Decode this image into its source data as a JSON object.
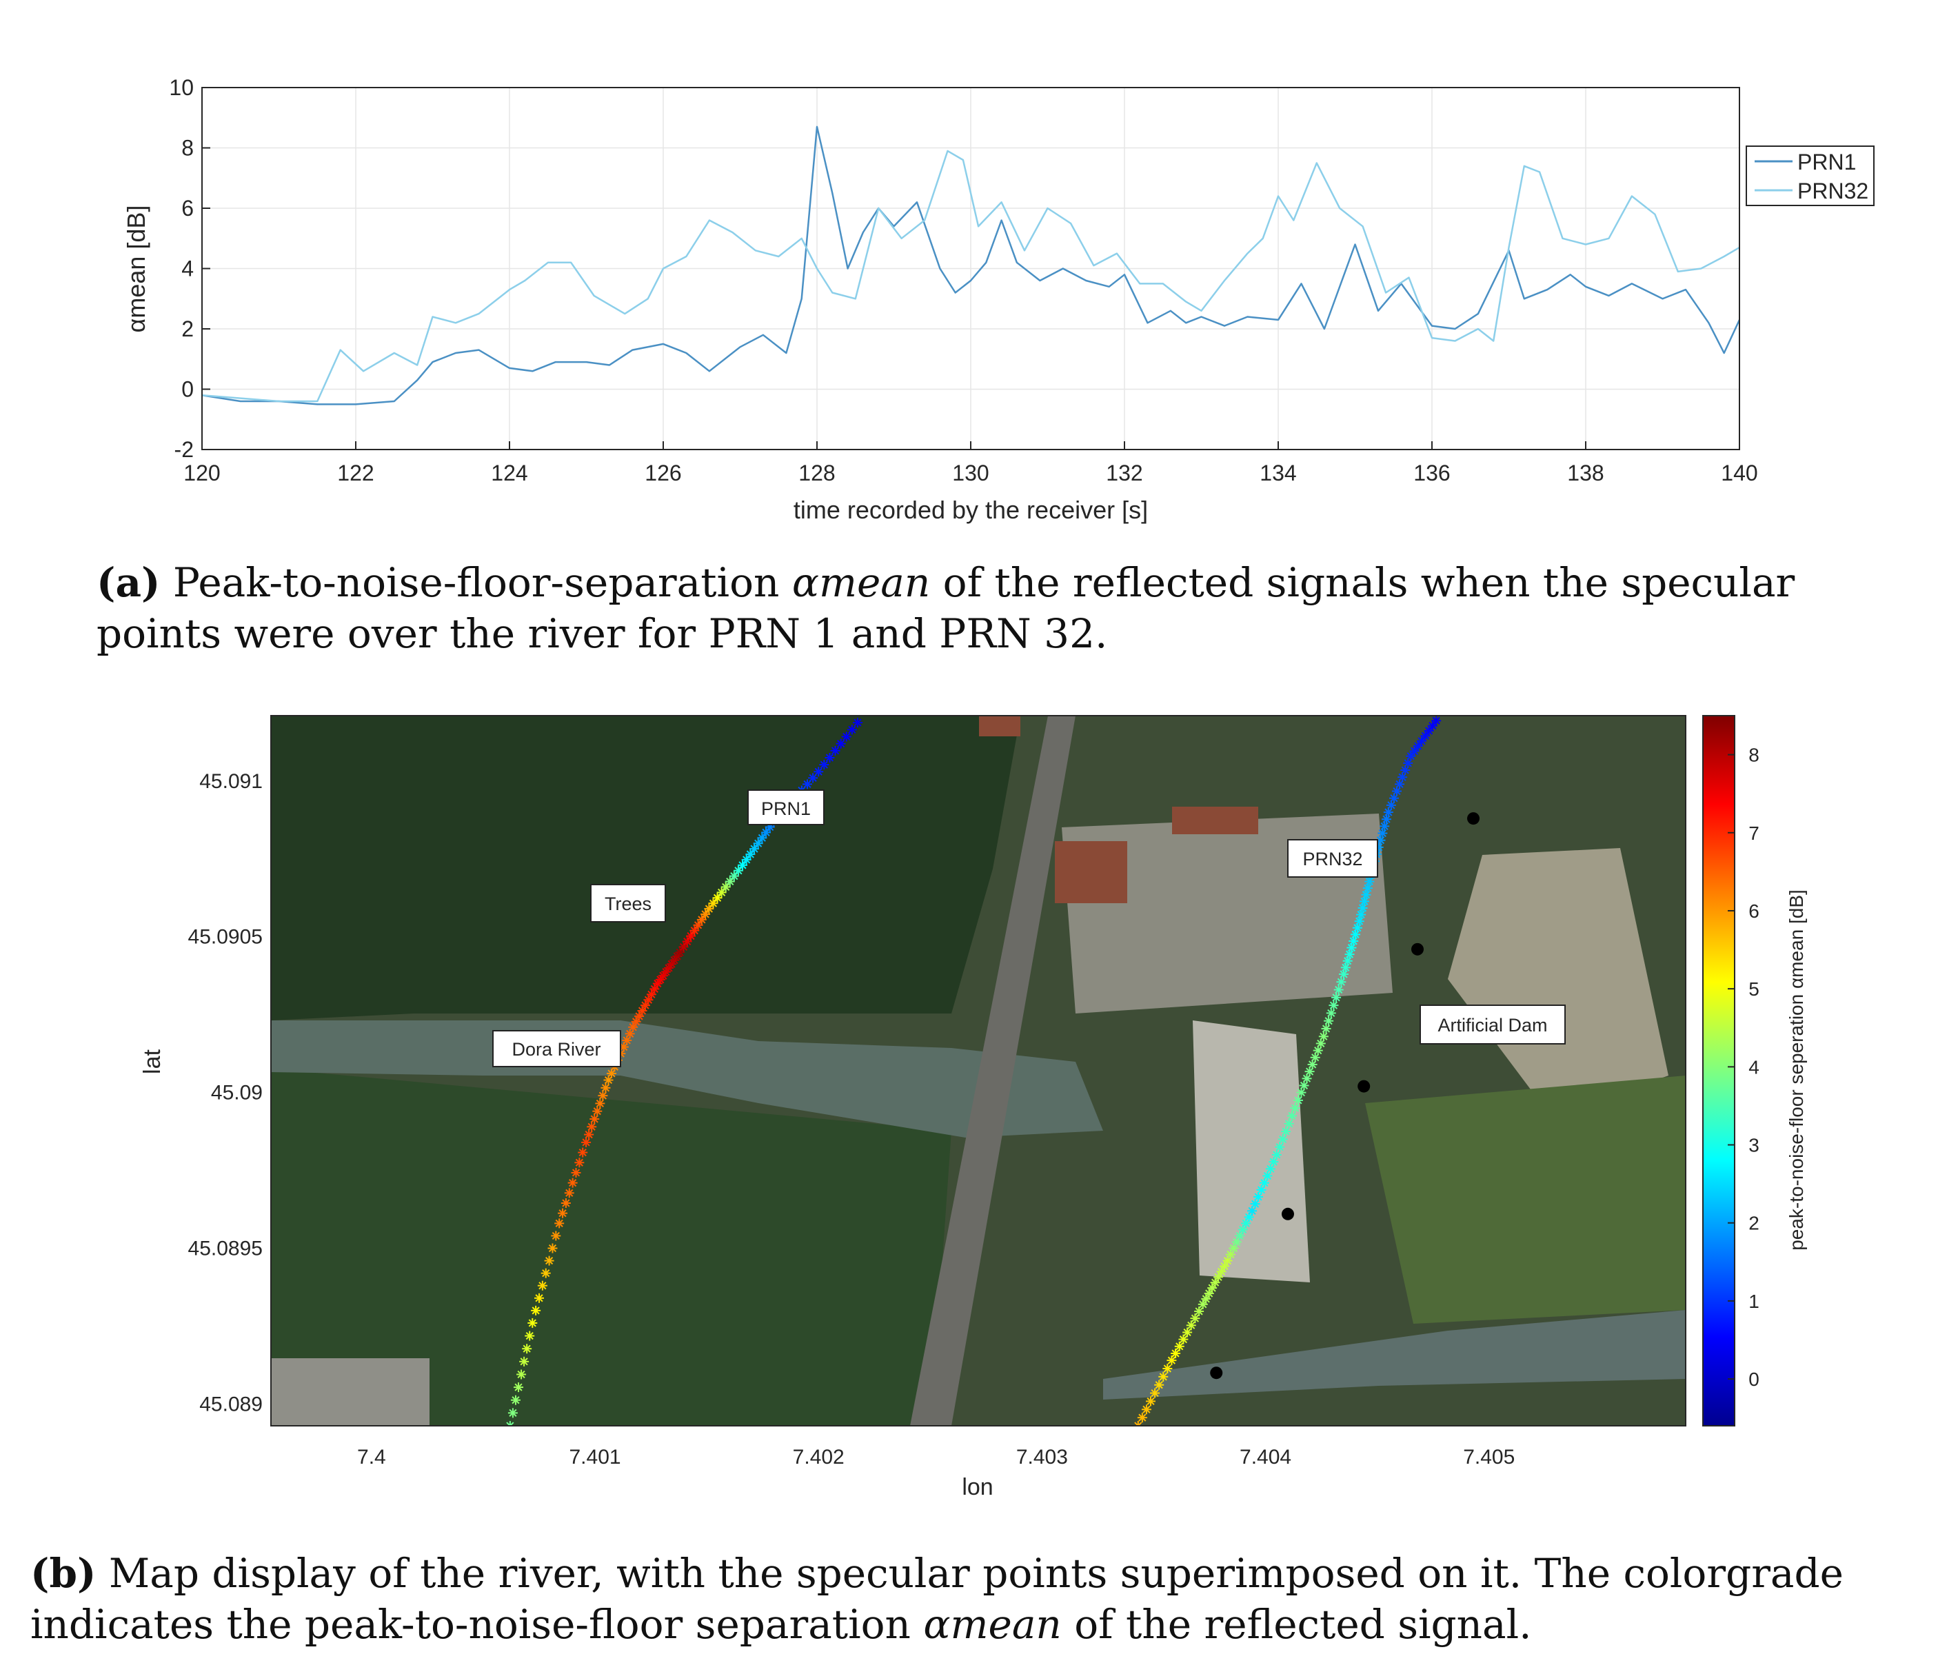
{
  "figure_a": {
    "caption_letter": "(a)",
    "caption_before": " Peak-to-noise-floor-separation ",
    "caption_symbol": "αmean",
    "caption_after": " of the reflected signals when the specular points were over the river for PRN 1 and PRN 32."
  },
  "figure_b": {
    "caption_letter": "(b)",
    "caption_before": " Map display of the river, with the specular points superimposed on it.  The colorgrade indicates the peak-to-noise-floor separation ",
    "caption_symbol": "αmean",
    "caption_after": " of the reflected signal.",
    "map_labels": [
      "PRN1",
      "Trees",
      "Dora River",
      "PRN32",
      "Artificial Dam"
    ],
    "colorbar_label": "peak-to-noise-floor seperation αmean [dB]"
  },
  "colors": {
    "prn1": "#4a90c4",
    "prn32": "#8ccfea",
    "grid": "#e6e6e6",
    "axis": "#262626"
  },
  "chart_data": [
    {
      "type": "line",
      "xlabel": "time recorded by the receiver [s]",
      "ylabel": "αmean [dB]",
      "xlim": [
        120,
        140
      ],
      "ylim": [
        -2,
        10
      ],
      "xticks": [
        120,
        122,
        124,
        126,
        128,
        130,
        132,
        134,
        136,
        138,
        140
      ],
      "yticks": [
        -2,
        0,
        2,
        4,
        6,
        8,
        10
      ],
      "grid": true,
      "legend": "outside-right",
      "series": [
        {
          "name": "PRN1",
          "x": [
            120,
            120.5,
            121,
            121.5,
            122,
            122.5,
            122.8,
            123,
            123.3,
            123.6,
            124,
            124.3,
            124.6,
            125,
            125.3,
            125.6,
            126,
            126.3,
            126.6,
            127,
            127.3,
            127.6,
            127.8,
            128,
            128.2,
            128.4,
            128.6,
            128.8,
            129,
            129.3,
            129.6,
            129.8,
            130,
            130.2,
            130.4,
            130.6,
            130.9,
            131.2,
            131.5,
            131.8,
            132,
            132.3,
            132.6,
            132.8,
            133,
            133.3,
            133.6,
            134,
            134.3,
            134.6,
            135,
            135.3,
            135.6,
            136,
            136.3,
            136.6,
            137,
            137.2,
            137.5,
            137.8,
            138,
            138.3,
            138.6,
            139,
            139.3,
            139.6,
            139.8,
            140
          ],
          "y": [
            -0.2,
            -0.4,
            -0.4,
            -0.5,
            -0.5,
            -0.4,
            0.3,
            0.9,
            1.2,
            1.3,
            0.7,
            0.6,
            0.9,
            0.9,
            0.8,
            1.3,
            1.5,
            1.2,
            0.6,
            1.4,
            1.8,
            1.2,
            3.0,
            8.7,
            6.5,
            4.0,
            5.2,
            6.0,
            5.4,
            6.2,
            4.0,
            3.2,
            3.6,
            4.2,
            5.6,
            4.2,
            3.6,
            4.0,
            3.6,
            3.4,
            3.8,
            2.2,
            2.6,
            2.2,
            2.4,
            2.1,
            2.4,
            2.3,
            3.5,
            2.0,
            4.8,
            2.6,
            3.5,
            2.1,
            2.0,
            2.5,
            4.6,
            3.0,
            3.3,
            3.8,
            3.4,
            3.1,
            3.5,
            3.0,
            3.3,
            2.2,
            1.2,
            2.3
          ]
        },
        {
          "name": "PRN32",
          "x": [
            120,
            120.5,
            121,
            121.5,
            121.8,
            122.1,
            122.5,
            122.8,
            123,
            123.3,
            123.6,
            124,
            124.2,
            124.5,
            124.8,
            125.1,
            125.5,
            125.8,
            126,
            126.3,
            126.6,
            126.9,
            127.2,
            127.5,
            127.8,
            128,
            128.2,
            128.5,
            128.8,
            129.1,
            129.4,
            129.7,
            129.9,
            130.1,
            130.4,
            130.7,
            131,
            131.3,
            131.6,
            131.9,
            132.2,
            132.5,
            132.8,
            133,
            133.3,
            133.6,
            133.8,
            134,
            134.2,
            134.5,
            134.8,
            135.1,
            135.4,
            135.7,
            136,
            136.3,
            136.6,
            136.8,
            137,
            137.2,
            137.4,
            137.7,
            138,
            138.3,
            138.6,
            138.9,
            139.2,
            139.5,
            139.8,
            140
          ],
          "y": [
            -0.2,
            -0.3,
            -0.4,
            -0.4,
            1.3,
            0.6,
            1.2,
            0.8,
            2.4,
            2.2,
            2.5,
            3.3,
            3.6,
            4.2,
            4.2,
            3.1,
            2.5,
            3.0,
            4.0,
            4.4,
            5.6,
            5.2,
            4.6,
            4.4,
            5.0,
            4.0,
            3.2,
            3.0,
            6.0,
            5.0,
            5.6,
            7.9,
            7.6,
            5.4,
            6.2,
            4.6,
            6.0,
            5.5,
            4.1,
            4.5,
            3.5,
            3.5,
            2.9,
            2.6,
            3.6,
            4.5,
            5.0,
            6.4,
            5.6,
            7.5,
            6.0,
            5.4,
            3.2,
            3.7,
            1.7,
            1.6,
            2.0,
            1.6,
            4.7,
            7.4,
            7.2,
            5.0,
            4.8,
            5.0,
            6.4,
            5.8,
            3.9,
            4.0,
            4.4,
            4.7
          ]
        }
      ]
    },
    {
      "type": "scatter",
      "xlabel": "lon",
      "ylabel": "lat",
      "xlim": [
        7.39955,
        7.40588
      ],
      "ylim": [
        45.08893,
        45.09121
      ],
      "xticks": [
        "7.4",
        "7.401",
        "7.402",
        "7.403",
        "7.404",
        "7.405"
      ],
      "yticks": [
        "45.089",
        "45.0895",
        "45.09",
        "45.0905",
        "45.091"
      ],
      "colorbar": {
        "label": "peak-to-noise-floor seperation αmean [dB]",
        "range": [
          -0.6,
          8.5
        ],
        "ticks": [
          0,
          1,
          2,
          3,
          4,
          5,
          6,
          7,
          8
        ]
      },
      "series": [
        {
          "name": "PRN1",
          "lon": [
            7.40062,
            7.40072,
            7.40084,
            7.40096,
            7.40106,
            7.40117,
            7.40128,
            7.40138,
            7.40151,
            7.40166,
            7.4018,
            7.402,
            7.4022
          ],
          "lat": [
            45.08893,
            45.08926,
            45.08958,
            45.08984,
            45.09004,
            45.09021,
            45.09035,
            45.09045,
            45.09059,
            45.09073,
            45.09087,
            45.09103,
            45.09121
          ],
          "values": [
            3.8,
            5.0,
            6.2,
            6.8,
            6.0,
            6.5,
            7.3,
            8.2,
            5.8,
            2.8,
            1.5,
            0.8,
            0.3
          ]
        },
        {
          "name": "PRN32",
          "lon": [
            7.40343,
            7.40358,
            7.40372,
            7.40383,
            7.40394,
            7.40405,
            7.40416,
            7.40426,
            7.40435,
            7.40442,
            7.40448,
            7.40455,
            7.40465,
            7.40478
          ],
          "lat": [
            45.08893,
            45.08914,
            45.08932,
            45.08946,
            45.08962,
            45.0898,
            45.09,
            45.09018,
            45.09038,
            45.09055,
            45.09072,
            45.0909,
            45.09108,
            45.09121
          ],
          "values": [
            5.8,
            5.2,
            4.3,
            4.6,
            2.6,
            3.2,
            3.8,
            4.0,
            3.3,
            2.6,
            2.2,
            1.5,
            0.9,
            0.4
          ]
        }
      ],
      "markers": [
        {
          "lon": 7.40493,
          "lat": 45.09088
        },
        {
          "lon": 7.40468,
          "lat": 45.09046
        },
        {
          "lon": 7.40444,
          "lat": 45.09002
        },
        {
          "lon": 7.4041,
          "lat": 45.08961
        },
        {
          "lon": 7.40378,
          "lat": 45.0891
        }
      ]
    }
  ]
}
